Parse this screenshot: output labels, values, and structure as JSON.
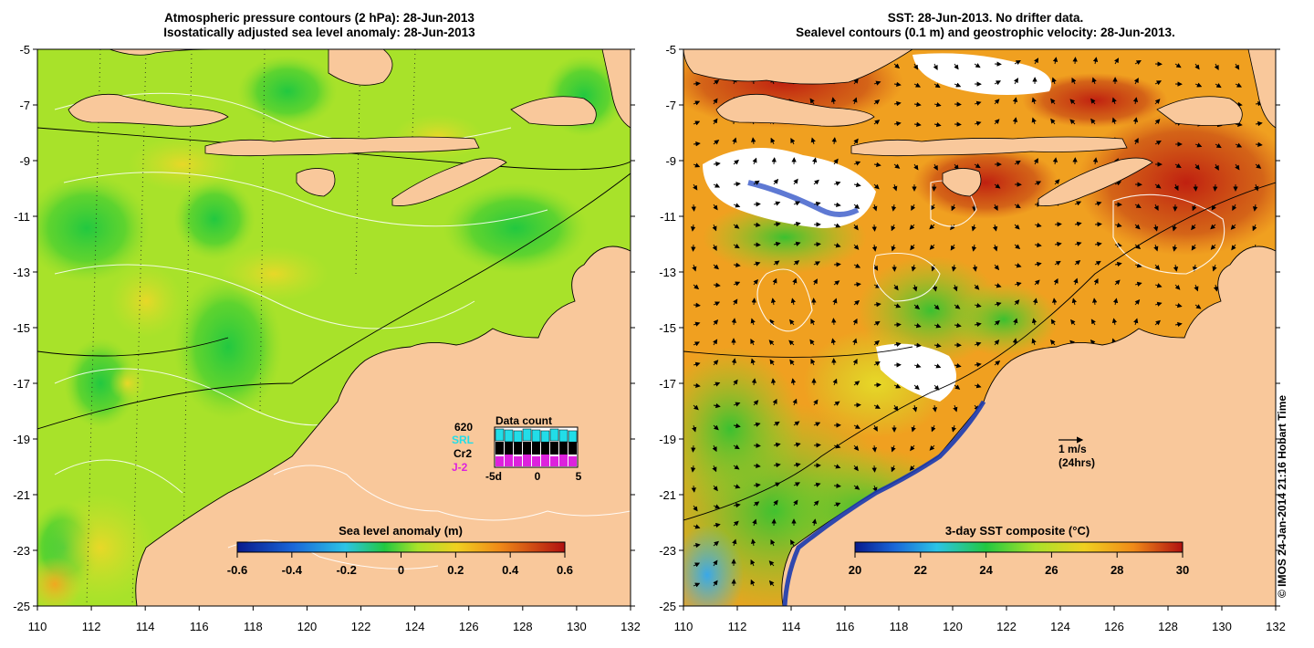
{
  "left_panel": {
    "title_line1": "Atmospheric pressure contours (2 hPa): 28-Jun-2013",
    "title_line2": "Isostatically adjusted sea level anomaly: 28-Jun-2013",
    "colorbar": {
      "label": "Sea level anomaly (m)",
      "ticks": [
        "-0.6",
        "-0.4",
        "-0.2",
        "0",
        "0.2",
        "0.4",
        "0.6"
      ]
    },
    "data_count": {
      "title": "Data count",
      "number": "620",
      "satellites": [
        "SRL",
        "Cr2",
        "J-2"
      ],
      "satellite_colors": [
        "#22dde8",
        "#000000",
        "#dd22dd"
      ],
      "xticks": [
        "-5d",
        "0",
        "5"
      ]
    }
  },
  "right_panel": {
    "title_line1": "SST: 28-Jun-2013. No drifter data.",
    "title_line2": "Sealevel contours (0.1 m) and geostrophic velocity: 28-Jun-2013.",
    "colorbar": {
      "label": "3-day SST composite (°C)",
      "ticks": [
        "20",
        "22",
        "24",
        "26",
        "28",
        "30"
      ]
    },
    "scale_arrow": {
      "label": "1 m/s",
      "sublabel": "(24hrs)"
    }
  },
  "axes": {
    "x_ticks": [
      "110",
      "112",
      "114",
      "116",
      "118",
      "120",
      "122",
      "124",
      "126",
      "128",
      "130",
      "132"
    ],
    "y_ticks": [
      "-5",
      "-7",
      "-9",
      "-11",
      "-13",
      "-15",
      "-17",
      "-19",
      "-21",
      "-23",
      "-25"
    ]
  },
  "credit": "© IMOS 24-Jan-2014 21:16 Hobart Time",
  "colors": {
    "land": "#f9c89b",
    "sla_base": "#a8e22a",
    "sst_base": "#f0a020"
  }
}
